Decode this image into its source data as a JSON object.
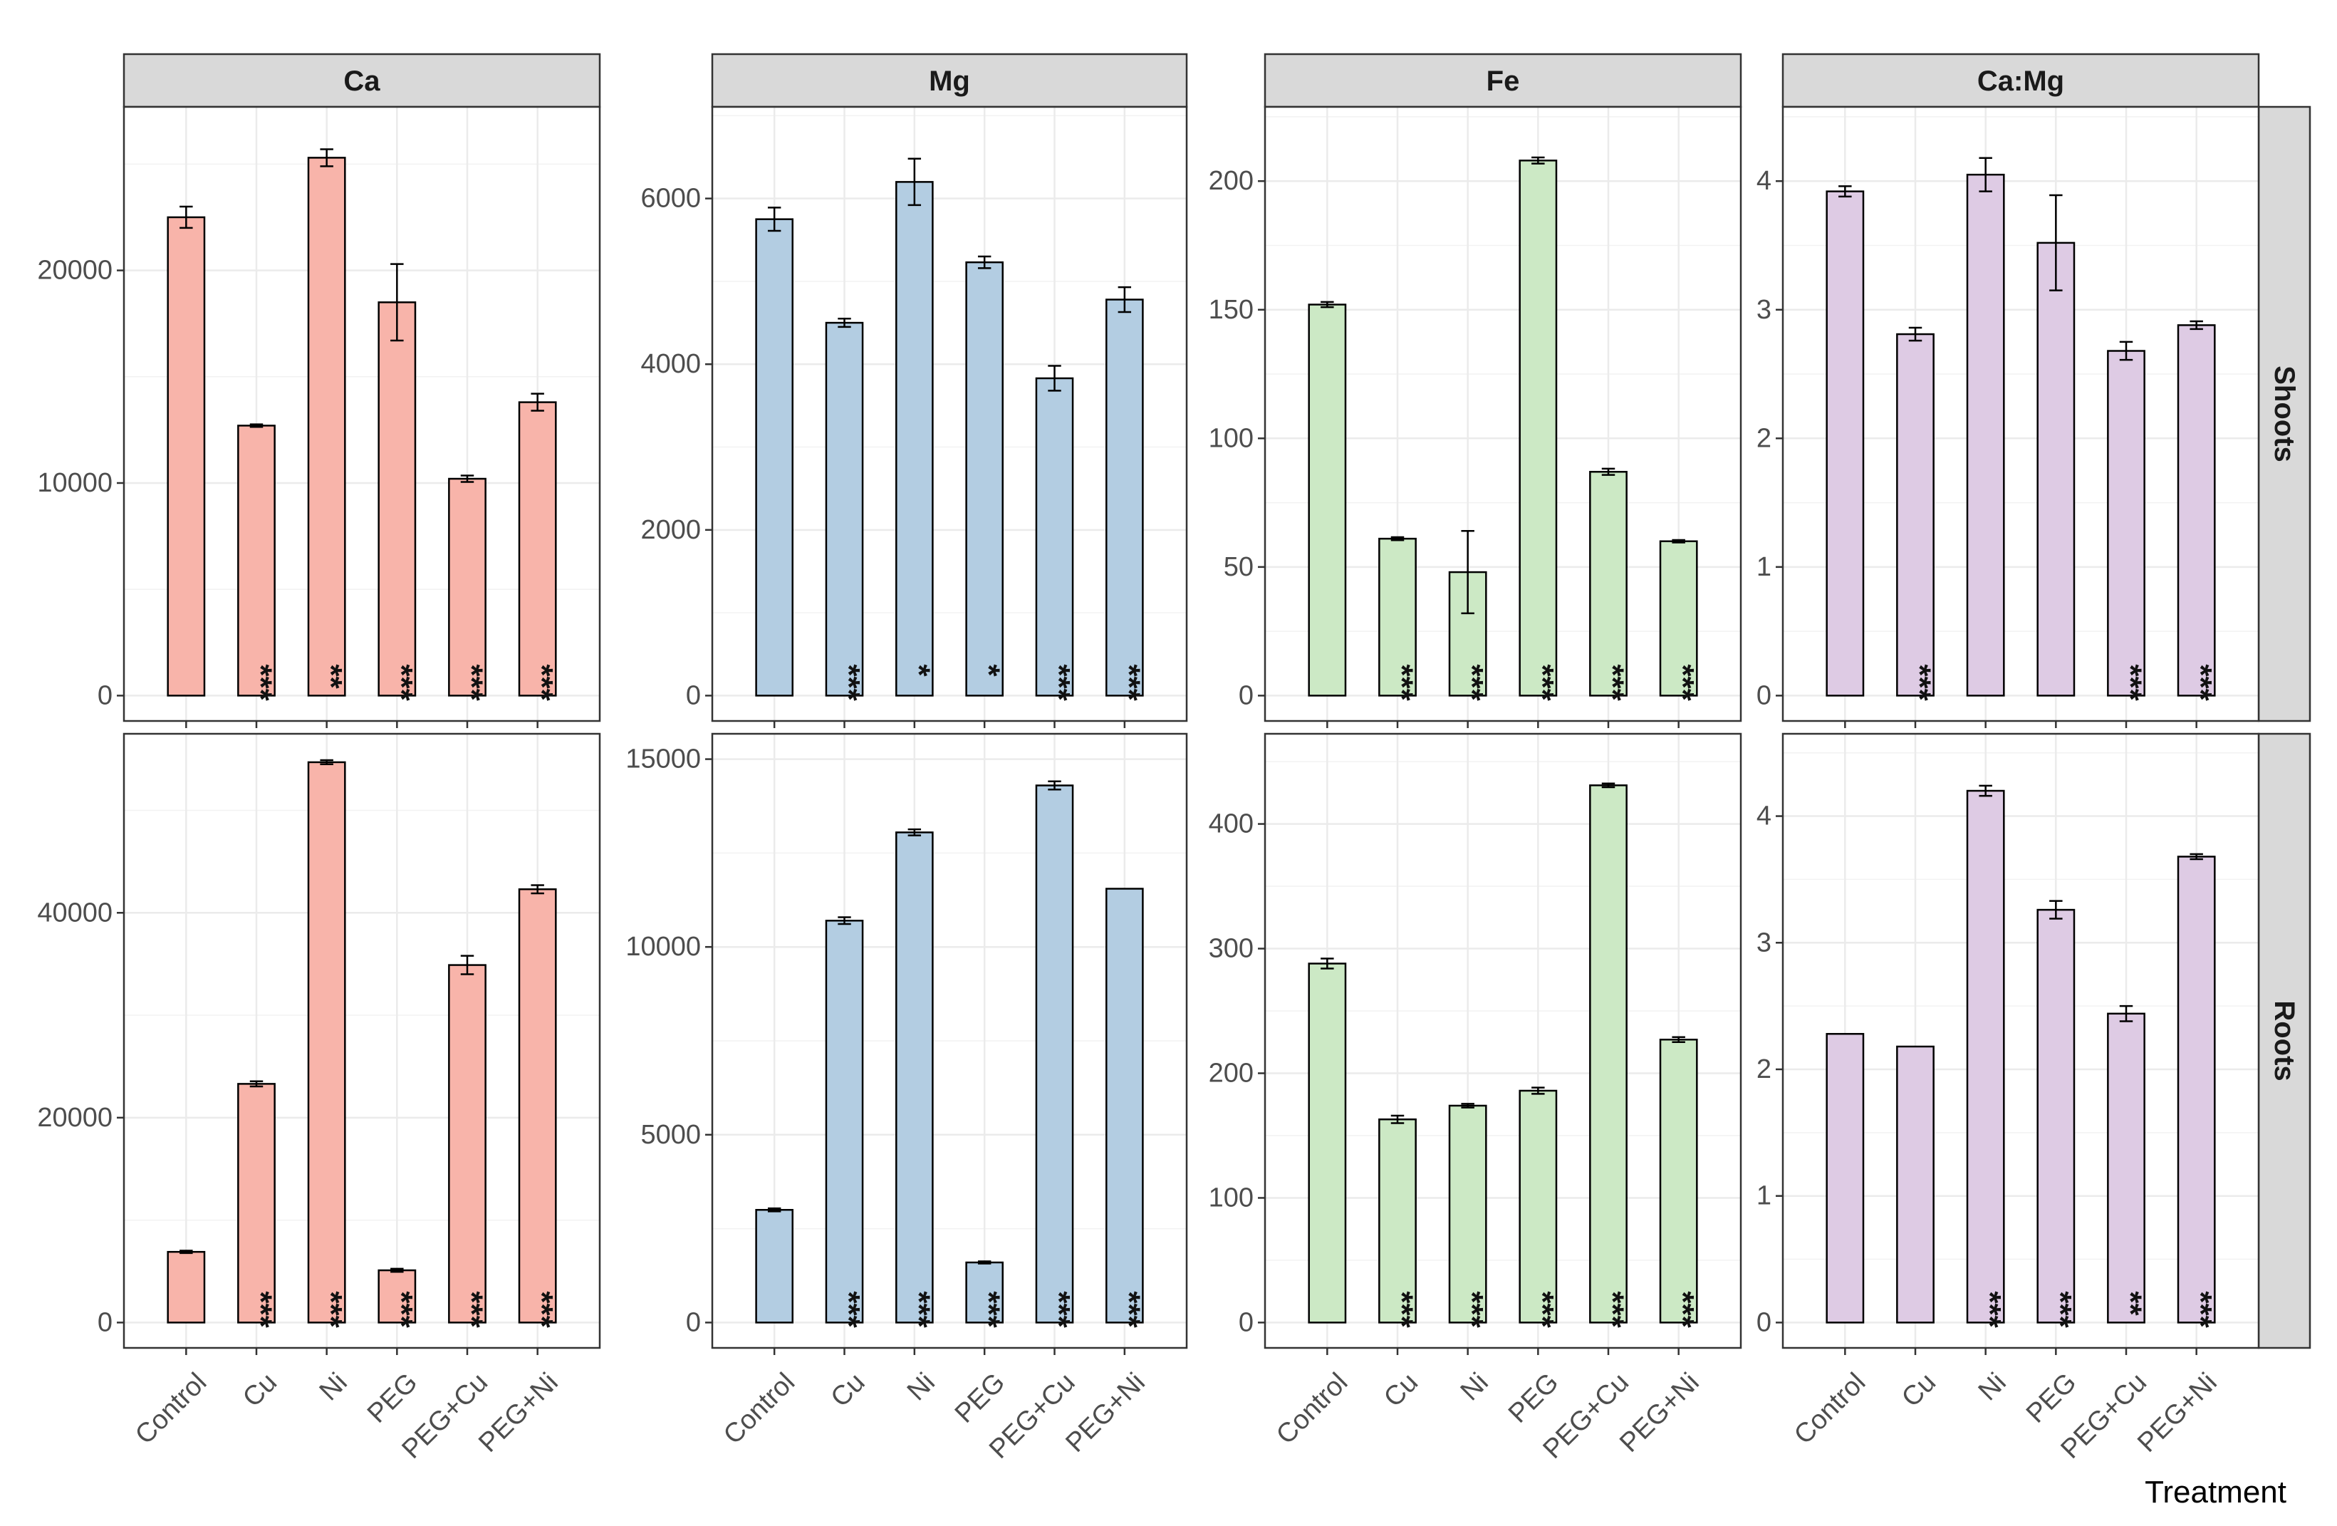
{
  "chart_data": {
    "type": "bar",
    "xlabel": "Treatment",
    "categories": [
      "Control",
      "Cu",
      "Ni",
      "PEG",
      "PEG+Cu",
      "PEG+Ni"
    ],
    "columns": [
      "Ca",
      "Mg",
      "Fe",
      "Ca:Mg"
    ],
    "rows": [
      "Shoots",
      "Roots"
    ],
    "grid": true,
    "legend": "none",
    "colors": {
      "Ca": "#F8B4AA",
      "Mg": "#B3CDE2",
      "Fe": "#CCE9C5",
      "Ca:Mg": "#DECBE4"
    },
    "panels": [
      {
        "column": "Ca",
        "row": "Shoots",
        "ylim": [
          0,
          26500
        ],
        "yticks": [
          0,
          10000,
          20000
        ],
        "yticklabels": [
          "0",
          "10000",
          "20000"
        ],
        "values": [
          22500,
          12700,
          25300,
          18500,
          10200,
          13800
        ],
        "errors": [
          500,
          60,
          400,
          1800,
          150,
          400
        ],
        "sig": [
          "",
          "***",
          "**",
          "***",
          "***",
          "***"
        ]
      },
      {
        "column": "Mg",
        "row": "Shoots",
        "ylim": [
          0,
          6800
        ],
        "yticks": [
          0,
          2000,
          4000,
          6000
        ],
        "yticklabels": [
          "0",
          "2000",
          "4000",
          "6000"
        ],
        "values": [
          5750,
          4500,
          6200,
          5230,
          3830,
          4780
        ],
        "errors": [
          140,
          50,
          280,
          70,
          150,
          150
        ],
        "sig": [
          "",
          "***",
          "*",
          "*",
          "***",
          "***"
        ]
      },
      {
        "column": "Fe",
        "row": "Shoots",
        "ylim": [
          0,
          219
        ],
        "yticks": [
          0,
          50,
          100,
          150,
          200
        ],
        "yticklabels": [
          "0",
          "50",
          "100",
          "150",
          "200"
        ],
        "values": [
          152,
          61,
          48,
          208,
          87,
          60
        ],
        "errors": [
          1,
          0.6,
          16,
          1.2,
          1.2,
          0.5
        ],
        "sig": [
          "",
          "***",
          "***",
          "***",
          "***",
          "***"
        ]
      },
      {
        "column": "Ca:Mg",
        "row": "Shoots",
        "ylim": [
          0,
          4.38
        ],
        "yticks": [
          0,
          1,
          2,
          3,
          4
        ],
        "yticklabels": [
          "0",
          "1",
          "2",
          "3",
          "4"
        ],
        "values": [
          3.92,
          2.81,
          4.05,
          3.52,
          2.68,
          2.88
        ],
        "errors": [
          0.04,
          0.05,
          0.13,
          0.37,
          0.07,
          0.03
        ],
        "sig": [
          "",
          "***",
          "",
          "",
          "***",
          "***"
        ]
      },
      {
        "column": "Ca",
        "row": "Roots",
        "ylim": [
          0,
          55000
        ],
        "yticks": [
          0,
          20000,
          40000
        ],
        "yticklabels": [
          "0",
          "20000",
          "40000"
        ],
        "values": [
          6900,
          23300,
          54700,
          5100,
          34900,
          42300
        ],
        "errors": [
          120,
          250,
          200,
          150,
          900,
          400
        ],
        "sig": [
          "",
          "***",
          "***",
          "***",
          "***",
          "***"
        ]
      },
      {
        "column": "Mg",
        "row": "Roots",
        "ylim": [
          0,
          15000
        ],
        "yticks": [
          0,
          5000,
          10000,
          15000
        ],
        "yticklabels": [
          "0",
          "5000",
          "10000",
          "15000"
        ],
        "values": [
          3000,
          10700,
          13050,
          1600,
          14300,
          11550
        ],
        "errors": [
          40,
          90,
          80,
          30,
          110,
          0
        ],
        "sig": [
          "",
          "***",
          "***",
          "***",
          "***",
          "***"
        ]
      },
      {
        "column": "Fe",
        "row": "Roots",
        "ylim": [
          0,
          452
        ],
        "yticks": [
          0,
          100,
          200,
          300,
          400
        ],
        "yticklabels": [
          "0",
          "100",
          "200",
          "300",
          "400"
        ],
        "values": [
          288,
          163,
          174,
          186,
          431,
          227
        ],
        "errors": [
          4,
          3,
          1.5,
          2.5,
          1.5,
          2
        ],
        "sig": [
          "",
          "***",
          "***",
          "***",
          "***",
          "***"
        ]
      },
      {
        "column": "Ca:Mg",
        "row": "Roots",
        "ylim": [
          0,
          4.45
        ],
        "yticks": [
          0,
          1,
          2,
          3,
          4
        ],
        "yticklabels": [
          "0",
          "1",
          "2",
          "3",
          "4"
        ],
        "values": [
          2.28,
          2.18,
          4.2,
          3.26,
          2.44,
          3.68
        ],
        "errors": [
          0,
          0,
          0.04,
          0.07,
          0.06,
          0.02
        ],
        "sig": [
          "",
          "",
          "***",
          "***",
          "**",
          "***"
        ]
      }
    ]
  }
}
